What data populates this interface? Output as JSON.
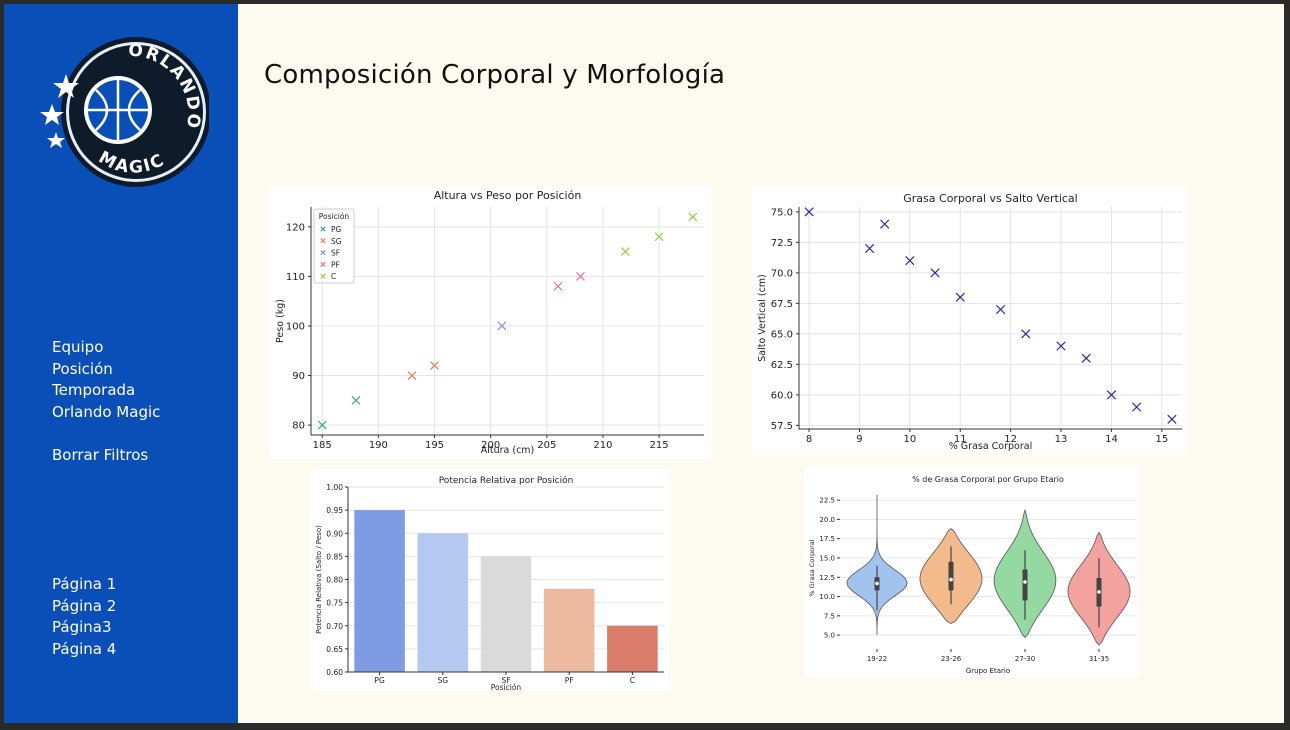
{
  "logo": {
    "line1": "ORLANDO",
    "line2": "MAGIC"
  },
  "page_title": "Composición Corporal y Morfología",
  "sidebar": {
    "filters": [
      "Equipo",
      "Posición",
      "Temporada",
      "Orlando Magic"
    ],
    "clear": "Borrar Filtros",
    "pages": [
      "Página 1",
      "Página 2",
      "Página3",
      "Página 4"
    ]
  },
  "colors": {
    "sidebar": "#0a4fb8",
    "page_bg": "#fdfaf0",
    "frame": "#2a2a2a"
  },
  "chart_data": [
    {
      "type": "scatter",
      "title": "Altura vs Peso por Posición",
      "xlabel": "Altura (cm)",
      "ylabel": "Peso (kg)",
      "xlim": [
        184,
        219
      ],
      "ylim": [
        78,
        124
      ],
      "xticks": [
        185,
        190,
        195,
        200,
        205,
        210,
        215
      ],
      "yticks": [
        80,
        90,
        100,
        110,
        120
      ],
      "legend_title": "Posición",
      "legend_position": "top-left",
      "grid": true,
      "series": [
        {
          "name": "PG",
          "color": "#3aa39a",
          "points": [
            [
              185,
              80
            ],
            [
              188,
              85
            ]
          ]
        },
        {
          "name": "SG",
          "color": "#ee7b52",
          "points": [
            [
              193,
              90
            ],
            [
              195,
              92
            ]
          ]
        },
        {
          "name": "SF",
          "color": "#8f8fd0",
          "points": [
            [
              201,
              100
            ]
          ]
        },
        {
          "name": "PF",
          "color": "#ea6ea8",
          "points": [
            [
              206,
              108
            ],
            [
              208,
              110
            ]
          ]
        },
        {
          "name": "C",
          "color": "#8fd03a",
          "points": [
            [
              212,
              115
            ],
            [
              215,
              118
            ],
            [
              218,
              122
            ]
          ]
        }
      ]
    },
    {
      "type": "scatter",
      "title": "Grasa Corporal vs Salto Vertical",
      "xlabel": "% Grasa Corporal",
      "ylabel": "Salto Vertical (cm)",
      "xlim": [
        7.8,
        15.4
      ],
      "ylim": [
        57.2,
        75.4
      ],
      "xticks": [
        8,
        9,
        10,
        11,
        12,
        13,
        14,
        15
      ],
      "yticks": [
        "57.5",
        "60.0",
        "62.5",
        "65.0",
        "67.5",
        "70.0",
        "72.5",
        "75.0"
      ],
      "grid": true,
      "color": "#2b2b9e",
      "points": [
        [
          8,
          75
        ],
        [
          9.2,
          72
        ],
        [
          9.5,
          74
        ],
        [
          10,
          71
        ],
        [
          10.5,
          70
        ],
        [
          11,
          68
        ],
        [
          11.8,
          67
        ],
        [
          12.3,
          65
        ],
        [
          13,
          64
        ],
        [
          13.5,
          63
        ],
        [
          14,
          60
        ],
        [
          14.5,
          59
        ],
        [
          15.2,
          58
        ]
      ]
    },
    {
      "type": "bar",
      "title": "Potencia Relativa por Posición",
      "xlabel": "Posición",
      "ylabel": "Potencia Relativa (Salto / Peso)",
      "ylim": [
        0.6,
        1.0
      ],
      "yticks": [
        "0.60",
        "0.65",
        "0.70",
        "0.75",
        "0.80",
        "0.85",
        "0.90",
        "0.95",
        "1.00"
      ],
      "grid": true,
      "categories": [
        "PG",
        "SG",
        "SF",
        "PF",
        "C"
      ],
      "values": [
        0.95,
        0.9,
        0.85,
        0.78,
        0.7
      ],
      "colors": [
        "#7f9be4",
        "#b4c8f0",
        "#dadada",
        "#edbaa0",
        "#d97d6a"
      ]
    },
    {
      "type": "violin",
      "title": "% de Grasa Corporal por Grupo Etario",
      "xlabel": "Grupo Etario",
      "ylabel": "% Grasa Corporal",
      "ylim": [
        3.2,
        24.2
      ],
      "yticks": [
        "5.0",
        "7.5",
        "10.0",
        "12.5",
        "15.0",
        "17.5",
        "20.0",
        "22.5"
      ],
      "grid": true,
      "groups": [
        {
          "name": "19-22",
          "color": "#a1c4ee",
          "min": 5,
          "max": 23.2,
          "q1": 10.8,
          "median": 11.7,
          "q3": 12.5,
          "wlo": 8.2,
          "whi": 14.0
        },
        {
          "name": "23-26",
          "color": "#f3bb8b",
          "min": 6.5,
          "max": 18.8,
          "q1": 10.8,
          "median": 12.2,
          "q3": 14.5,
          "wlo": 9.0,
          "whi": 16.5
        },
        {
          "name": "27-30",
          "color": "#94d9a2",
          "min": 4.7,
          "max": 21.2,
          "q1": 9.5,
          "median": 11.9,
          "q3": 13.5,
          "wlo": 7.0,
          "whi": 16.0
        },
        {
          "name": "31-35",
          "color": "#f4a2a0",
          "min": 3.7,
          "max": 18.3,
          "q1": 8.7,
          "median": 10.6,
          "q3": 12.4,
          "wlo": 6.0,
          "whi": 15.0
        }
      ]
    }
  ]
}
